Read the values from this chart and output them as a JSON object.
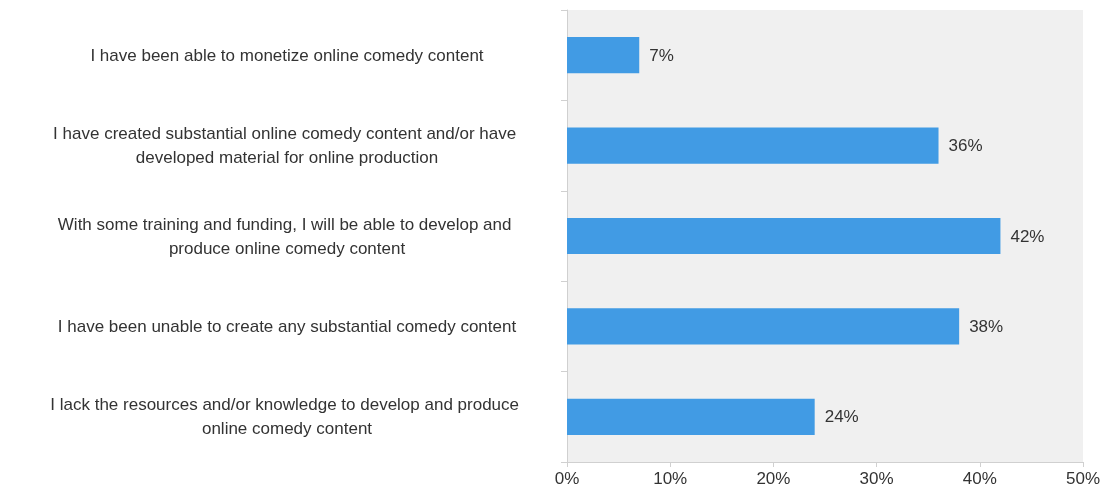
{
  "chart_data": {
    "type": "bar",
    "orientation": "horizontal",
    "categories": [
      "I have been able to monetize online comedy content",
      "I have created substantial online comedy content and/or have developed material for online production",
      "With some training and funding, I will be able to develop and produce online comedy content",
      "I have been unable to create any substantial comedy content",
      "I lack the resources and/or knowledge to develop and produce online comedy content"
    ],
    "values": [
      7,
      36,
      42,
      38,
      24
    ],
    "value_labels": [
      "7%",
      "36%",
      "42%",
      "38%",
      "24%"
    ],
    "color": "#419be4",
    "xlim": [
      0,
      50
    ],
    "xticks": [
      {
        "value": 0,
        "label": "0%"
      },
      {
        "value": 10,
        "label": "10%"
      },
      {
        "value": 20,
        "label": "20%"
      },
      {
        "value": 30,
        "label": "30%"
      },
      {
        "value": 40,
        "label": "40%"
      },
      {
        "value": 50,
        "label": "50%"
      }
    ],
    "grid": false
  }
}
